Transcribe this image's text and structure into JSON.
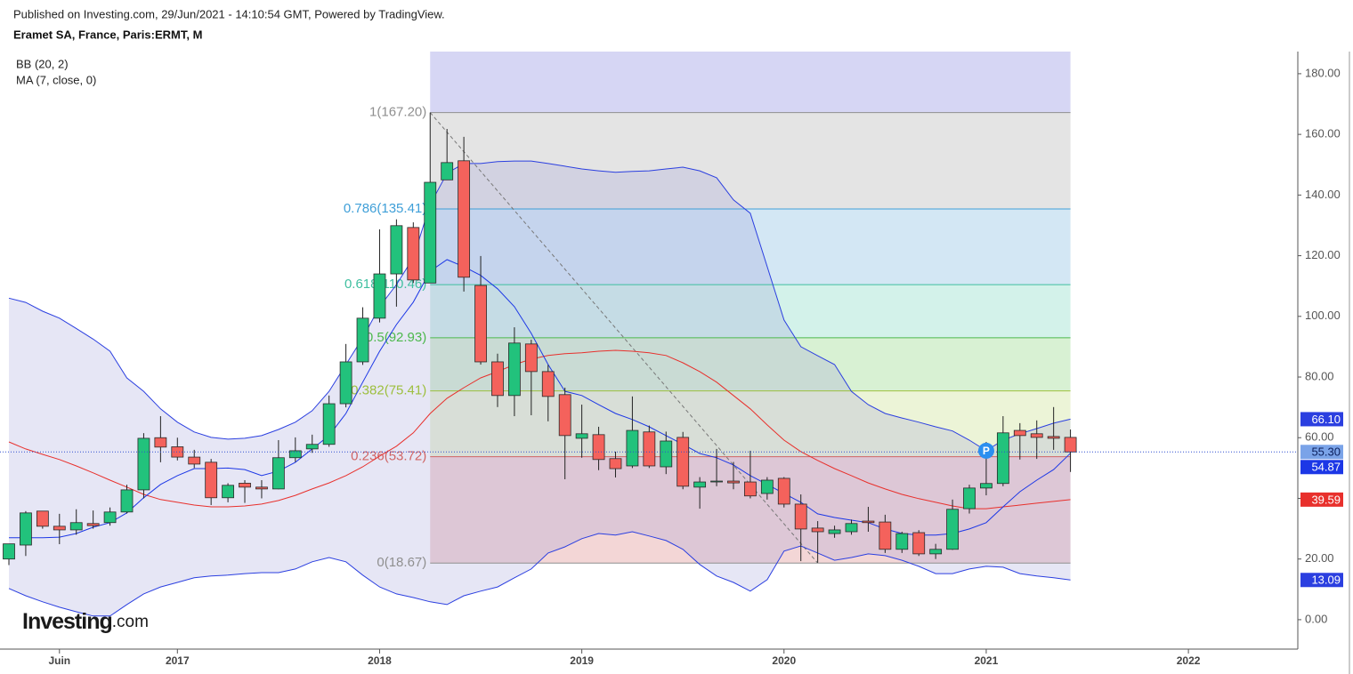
{
  "chart_data": {
    "type": "candlestick",
    "published": "Published on Investing.com, 29/Jun/2021 - 14:10:54 GMT, Powered by TradingView.",
    "title": "Eramet SA, France, Paris:ERMT, M",
    "logo": {
      "brand": "Investing",
      "suffix": ".com"
    },
    "marker": "P",
    "categories": [
      null,
      null,
      null,
      "Juin",
      null,
      null,
      null,
      null,
      null,
      null,
      "2017",
      null,
      null,
      null,
      null,
      null,
      null,
      null,
      null,
      null,
      null,
      null,
      "2018",
      null,
      null,
      null,
      null,
      null,
      null,
      null,
      null,
      null,
      null,
      null,
      "2019",
      null,
      null,
      null,
      null,
      null,
      null,
      null,
      null,
      null,
      null,
      null,
      "2020",
      null,
      null,
      null,
      null,
      null,
      null,
      null,
      null,
      null,
      null,
      null,
      "2021",
      null,
      null,
      null,
      null,
      null,
      null,
      null,
      null,
      null,
      null,
      null,
      "2022"
    ],
    "ylim": [
      -9.7,
      187.3
    ],
    "yticks": [
      {
        "value": 0,
        "label": "0.00"
      },
      {
        "value": 20,
        "label": "20.00"
      },
      {
        "value": 40,
        "label": "40.00"
      },
      {
        "value": 60,
        "label": "60.00"
      },
      {
        "value": 80,
        "label": "80.00"
      },
      {
        "value": 100,
        "label": "100.00"
      },
      {
        "value": 120,
        "label": "120.00"
      },
      {
        "value": 140,
        "label": "140.00"
      },
      {
        "value": 160,
        "label": "160.00"
      },
      {
        "value": 180,
        "label": "180.00"
      }
    ],
    "candles": {
      "up_color": "#22c27c",
      "down_color": "#f4625c",
      "last_label": "55.30",
      "last_label_color": "#7aa3e8",
      "last_line_color": "#2f4fd0",
      "open": [
        20,
        24.6,
        35.8,
        30.8,
        29.6,
        31.7,
        32,
        35.5,
        42.8,
        60,
        57,
        53.6,
        51.9,
        40.2,
        45,
        43.7,
        43.1,
        53.4,
        56.3,
        57.8,
        71.2,
        85,
        99.4,
        114,
        129.3,
        111,
        145,
        151.3,
        110.2,
        85,
        73.9,
        90.9,
        81.8,
        74.2,
        59.8,
        61,
        53.1,
        50.7,
        61.9,
        50.4,
        60.1,
        43.7,
        45.5,
        45.7,
        45.4,
        41.6,
        46.6,
        38.1,
        30.2,
        28.4,
        29,
        32.5,
        32.2,
        23.2,
        28.7,
        21.7,
        23.2,
        36.6,
        43.4,
        44.9,
        62.4,
        61.3,
        60.4,
        60.1,
        null,
        null,
        null,
        null,
        null,
        null,
        null
      ],
      "high": [
        25,
        35.8,
        35.8,
        34.9,
        36.4,
        36,
        37,
        44.5,
        61.5,
        67.1,
        60,
        56,
        53,
        45,
        46,
        46,
        59.2,
        60.1,
        61,
        73.9,
        90.9,
        103,
        128.7,
        132,
        131,
        167.2,
        161.8,
        159.2,
        119.9,
        87.7,
        96.4,
        92.3,
        84,
        76.5,
        70.9,
        63.6,
        55.4,
        73.6,
        64,
        62,
        61.9,
        47,
        56.3,
        52,
        55.7,
        47,
        47,
        41.3,
        32.5,
        31,
        33,
        37.2,
        34.6,
        29,
        29.5,
        25,
        39.6,
        44.5,
        58.6,
        67.1,
        64.8,
        65.7,
        70.1,
        62.7,
        null,
        null,
        null,
        null,
        null,
        null,
        null
      ],
      "low": [
        18,
        21,
        30,
        24.9,
        28,
        30,
        31,
        35,
        40,
        51.9,
        52.5,
        50,
        37.8,
        38.7,
        38.5,
        40,
        43,
        52,
        55,
        57,
        70,
        84,
        98,
        103.2,
        111,
        111,
        145,
        108.2,
        84.1,
        70.1,
        67.1,
        67.4,
        65.4,
        46.3,
        53.4,
        49.3,
        46.9,
        50,
        50,
        48,
        43,
        36.6,
        44,
        43,
        40,
        39.6,
        37,
        19.3,
        18.8,
        27,
        28,
        29,
        22,
        22,
        21,
        20,
        23,
        35,
        41,
        44,
        52.8,
        53,
        56,
        48.7,
        null,
        null,
        null,
        null,
        null,
        null,
        null
      ],
      "close": [
        25,
        35.2,
        30.8,
        29.6,
        32,
        31,
        35.5,
        42.8,
        59.8,
        56.9,
        53.6,
        51.3,
        40.2,
        44.3,
        43.7,
        43.1,
        53.4,
        55.7,
        57.8,
        71.2,
        85,
        99.4,
        114,
        129.9,
        112,
        144.2,
        150.7,
        112.9,
        85,
        73.9,
        91.2,
        81.8,
        73.6,
        60.7,
        61.3,
        52.8,
        49.8,
        62.4,
        50.7,
        58.9,
        44,
        45.4,
        45.7,
        45.1,
        40.8,
        46,
        38.1,
        29.9,
        29,
        29.6,
        31.7,
        32,
        23.2,
        28.4,
        21.7,
        23.2,
        36.4,
        43.4,
        44.9,
        61.6,
        60.7,
        60.1,
        59.8,
        55.3,
        null,
        null,
        null,
        null,
        null,
        null,
        null
      ]
    },
    "indicators": [
      {
        "name": "BB (20, 2)",
        "fill": "#9a9ad6",
        "lines": [
          {
            "color": "#2b3fe0",
            "end_label": "66.10",
            "values": [
              106,
              104.6,
              101.7,
              99.4,
              96,
              92.5,
              88.5,
              79.7,
              75.3,
              69.5,
              65.1,
              61.9,
              60.1,
              59.5,
              59.8,
              60.7,
              62.7,
              65.1,
              68.9,
              75.3,
              84.1,
              92.9,
              103.2,
              110.5,
              119.3,
              136.9,
              147.2,
              150.4,
              150.4,
              151,
              151.2,
              151.2,
              150.4,
              149.5,
              148.6,
              148,
              147.5,
              147.8,
              148,
              148.6,
              149.2,
              148,
              145.7,
              138.4,
              134,
              116.4,
              98.8,
              90,
              87,
              84.1,
              75.3,
              70.9,
              68,
              66.5,
              65.1,
              63.6,
              62.2,
              59.2,
              55.7,
              59.2,
              61.3,
              63,
              64.8,
              66.1,
              null,
              null,
              null,
              null,
              null,
              null,
              null
            ]
          },
          {
            "color": "#e8302c",
            "end_label": "39.59",
            "values": [
              58.6,
              56.3,
              54.5,
              52.8,
              50.7,
              48.4,
              46,
              43.7,
              41.3,
              39.6,
              38.7,
              37.8,
              37.2,
              37.2,
              37.5,
              38.1,
              39.3,
              41,
              43.1,
              45.1,
              47.5,
              50.4,
              53.9,
              57.2,
              61.6,
              68,
              73,
              76.5,
              79.7,
              81.8,
              84.1,
              85.9,
              87.1,
              87.7,
              88,
              88.5,
              88.8,
              88.5,
              88,
              87.1,
              84.7,
              81.8,
              78.3,
              73.9,
              69.5,
              64.2,
              59.2,
              55.4,
              52.5,
              49.8,
              47.5,
              45.1,
              43.1,
              41.3,
              39.9,
              38.7,
              37.5,
              36.6,
              36.6,
              37.2,
              37.8,
              38.4,
              39,
              39.59,
              null,
              null,
              null,
              null,
              null,
              null,
              null
            ]
          },
          {
            "color": "#2b3fe0",
            "end_label": "13.09",
            "values": [
              10.3,
              7.9,
              5.9,
              4.1,
              2.6,
              1.2,
              1.2,
              5,
              8.5,
              10.8,
              12.3,
              13.8,
              14.4,
              14.7,
              15.2,
              15.5,
              15.5,
              16.7,
              19.1,
              20.5,
              19.1,
              14.7,
              10.8,
              8.5,
              7.3,
              5.9,
              5,
              7.9,
              9.4,
              10.8,
              13.8,
              16.7,
              22,
              24,
              26.7,
              28.4,
              27.9,
              29,
              27.6,
              26.1,
              23.2,
              18.2,
              14.4,
              12.3,
              9.4,
              13.2,
              22.6,
              24.3,
              22,
              19.6,
              20.5,
              21.7,
              21.1,
              19.6,
              17.6,
              15.2,
              15.2,
              16.7,
              17.6,
              17.3,
              15.2,
              14.4,
              13.8,
              13.09,
              null,
              null,
              null,
              null,
              null,
              null,
              null
            ]
          }
        ]
      },
      {
        "name": "MA (7, close, 0)",
        "lines": [
          {
            "color": "#1c37e6",
            "end_label": "54.87",
            "values": [
              27,
              27,
              27,
              27.2,
              28.4,
              30.5,
              32,
              35.2,
              40.2,
              44.6,
              47.5,
              49.8,
              49.8,
              50,
              49.5,
              47.5,
              49,
              51.9,
              56.3,
              60.7,
              68,
              78.3,
              88.5,
              97.3,
              104.7,
              114.9,
              118.7,
              116.4,
              113.5,
              109.1,
              103.2,
              94.4,
              84.1,
              75.3,
              73.9,
              70.9,
              68,
              66,
              63.6,
              60.7,
              57.8,
              54.8,
              53.4,
              51,
              47.5,
              44.6,
              41.6,
              38.7,
              34.9,
              33.7,
              32.8,
              32,
              29.9,
              28.4,
              27.9,
              27.9,
              28.4,
              29.9,
              32,
              37.2,
              42.2,
              46,
              49.5,
              54.87,
              null,
              null,
              null,
              null,
              null,
              null,
              null
            ]
          }
        ]
      }
    ],
    "fibonacci": {
      "top_fill": "#d6d6f4",
      "trend_color": "#777777",
      "levels": [
        {
          "value": 167.2,
          "label": "1(167.20)",
          "color": "#8f8f8f",
          "fill": "#e4e4e4"
        },
        {
          "value": 135.41,
          "label": "0.786(135.41)",
          "color": "#3f9fd8",
          "fill": "#d3e7f4"
        },
        {
          "value": 110.46,
          "label": "0.618(110.46)",
          "color": "#3fbfa0",
          "fill": "#d3f2ea"
        },
        {
          "value": 92.93,
          "label": "0.5(92.93)",
          "color": "#4cb84c",
          "fill": "#d8f1d3"
        },
        {
          "value": 75.41,
          "label": "0.382(75.41)",
          "color": "#9dbf3e",
          "fill": "#ecf4d7"
        },
        {
          "value": 53.72,
          "label": "0.236(53.72)",
          "color": "#d06464",
          "fill": "#f3d6d6"
        },
        {
          "value": 18.67,
          "label": "0(18.67)",
          "color": "#8f8f8f",
          "fill": null
        }
      ]
    }
  }
}
